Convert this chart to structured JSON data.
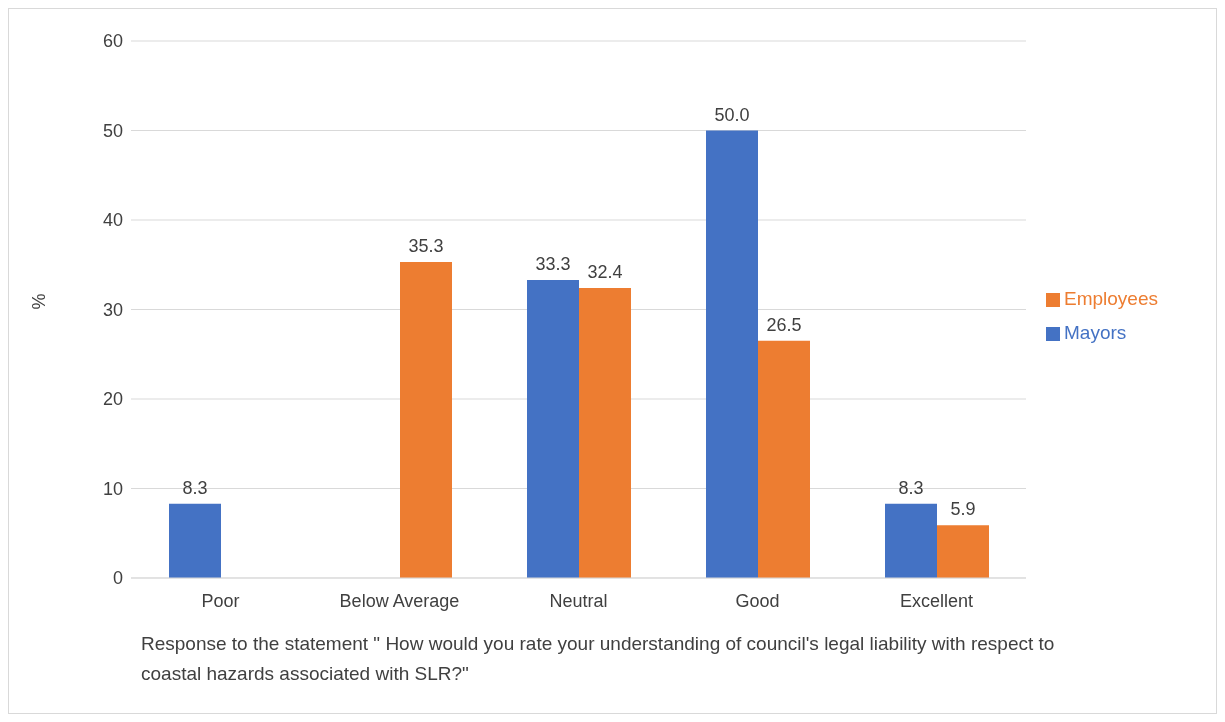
{
  "chart_data": {
    "type": "bar",
    "xlabel": "Response to the statement \" How would you rate your understanding of council's legal liability with respect to coastal hazards associated with SLR?\"",
    "ylabel": "%",
    "categories": [
      "Poor",
      "Below Average",
      "Neutral",
      "Good",
      "Excellent"
    ],
    "series": [
      {
        "name": "Mayors",
        "color": "#4472c4",
        "values": [
          8.3,
          null,
          33.3,
          50.0,
          8.3
        ],
        "value_labels": [
          "8.3",
          null,
          "33.3",
          "50.0",
          "8.3"
        ]
      },
      {
        "name": "Employees",
        "color": "#ed7d31",
        "values": [
          null,
          35.3,
          32.4,
          26.5,
          5.9
        ],
        "value_labels": [
          null,
          "35.3",
          "32.4",
          "26.5",
          "5.9"
        ]
      }
    ],
    "ylim": [
      0,
      60
    ],
    "yticks": [
      0,
      10,
      20,
      30,
      40,
      50,
      60
    ],
    "grid": "y",
    "legend": "right"
  }
}
